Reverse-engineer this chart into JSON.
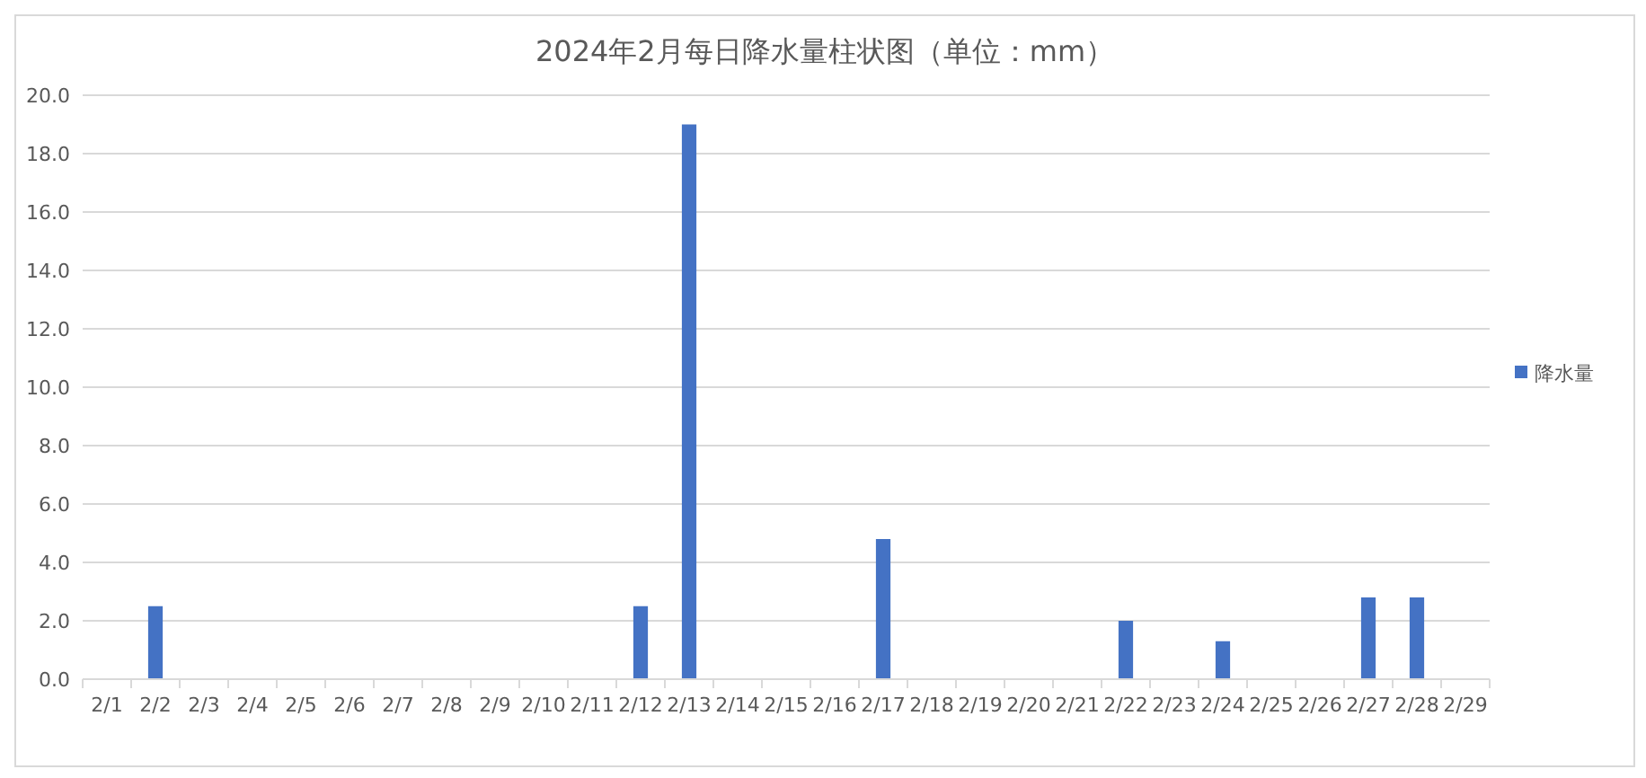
{
  "chart_data": {
    "type": "bar",
    "title": "2024年2月每日降水量柱状图（单位：mm）",
    "categories": [
      "2/1",
      "2/2",
      "2/3",
      "2/4",
      "2/5",
      "2/6",
      "2/7",
      "2/8",
      "2/9",
      "2/10",
      "2/11",
      "2/12",
      "2/13",
      "2/14",
      "2/15",
      "2/16",
      "2/17",
      "2/18",
      "2/19",
      "2/20",
      "2/21",
      "2/22",
      "2/23",
      "2/24",
      "2/25",
      "2/26",
      "2/27",
      "2/28",
      "2/29"
    ],
    "series": [
      {
        "name": "降水量",
        "color": "#4472c4",
        "values": [
          0,
          2.5,
          0,
          0,
          0,
          0,
          0,
          0,
          0,
          0,
          0,
          2.5,
          19.0,
          0,
          0,
          0,
          4.8,
          0,
          0,
          0,
          0,
          2.0,
          0,
          1.3,
          0,
          0,
          2.8,
          2.8,
          0
        ]
      }
    ],
    "ylim": [
      0,
      20
    ],
    "yticks": [
      {
        "value": 0,
        "label": "0.0"
      },
      {
        "value": 2,
        "label": "2.0"
      },
      {
        "value": 4,
        "label": "4.0"
      },
      {
        "value": 6,
        "label": "6.0"
      },
      {
        "value": 8,
        "label": "8.0"
      },
      {
        "value": 10,
        "label": "10.0"
      },
      {
        "value": 12,
        "label": "12.0"
      },
      {
        "value": 14,
        "label": "14.0"
      },
      {
        "value": 16,
        "label": "16.0"
      },
      {
        "value": 18,
        "label": "18.0"
      },
      {
        "value": 20,
        "label": "20.0"
      }
    ],
    "grid": "y",
    "legend": "right"
  }
}
